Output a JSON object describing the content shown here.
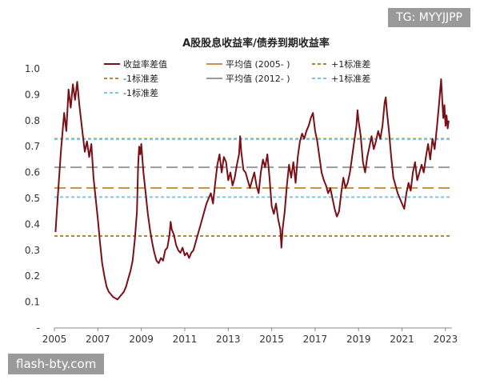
{
  "watermark_top": "TG: MYYJJPP",
  "watermark_bottom": "flash-bty.com",
  "chart_data": {
    "type": "line",
    "title": "A股股息收益率/债券到期收益率",
    "xlabel": "",
    "ylabel": "",
    "xlim": [
      2005,
      2023.3
    ],
    "ylim": [
      0,
      1.0
    ],
    "x_ticks": [
      "2005",
      "2007",
      "2009",
      "2011",
      "2013",
      "2015",
      "2017",
      "2019",
      "2021",
      "2023"
    ],
    "y_ticks": [
      "-",
      "0.1",
      "0.2",
      "0.3",
      "0.4",
      "0.5",
      "0.6",
      "0.7",
      "0.8",
      "0.9",
      "1.0"
    ],
    "legend": [
      {
        "name": "收益率差值",
        "style": "solid",
        "color": "#7b0f17"
      },
      {
        "name": "平均值 (2005- )",
        "style": "solid",
        "color": "#c8944a"
      },
      {
        "name": "+1标准差",
        "style": "dashed",
        "color": "#b8862c"
      },
      {
        "name": "-1标准差",
        "style": "dashed",
        "color": "#b8862c"
      },
      {
        "name": "平均值 (2012- )",
        "style": "solid",
        "color": "#9a9a9a"
      },
      {
        "name": "+1标准差",
        "style": "dashed",
        "color": "#7fc3ea"
      },
      {
        "name": "-1标准差",
        "style": "dashed",
        "color": "#7fc3ea"
      }
    ],
    "reference_lines": [
      {
        "name": "平均值 (2005- )",
        "y": 0.54,
        "color": "#c8944a",
        "dash": "long"
      },
      {
        "name": "+1标准差 (2005- )",
        "y": 0.73,
        "color": "#b8862c",
        "dash": "short"
      },
      {
        "name": "-1标准差 (2005- )",
        "y": 0.355,
        "color": "#b8862c",
        "dash": "short"
      },
      {
        "name": "平均值 (2012- )",
        "y": 0.62,
        "color": "#9a9a9a",
        "dash": "long"
      },
      {
        "name": "+1标准差 (2012- )",
        "y": 0.728,
        "color": "#7fc3ea",
        "dash": "short"
      },
      {
        "name": "-1标准差 (2012- )",
        "y": 0.505,
        "color": "#7fc3ea",
        "dash": "short"
      }
    ],
    "series": [
      {
        "name": "收益率差值",
        "color": "#7b0f17",
        "points": [
          [
            2005.05,
            0.37
          ],
          [
            2005.15,
            0.5
          ],
          [
            2005.3,
            0.68
          ],
          [
            2005.45,
            0.83
          ],
          [
            2005.55,
            0.76
          ],
          [
            2005.65,
            0.92
          ],
          [
            2005.75,
            0.85
          ],
          [
            2005.85,
            0.94
          ],
          [
            2005.95,
            0.88
          ],
          [
            2006.05,
            0.95
          ],
          [
            2006.15,
            0.86
          ],
          [
            2006.3,
            0.75
          ],
          [
            2006.4,
            0.68
          ],
          [
            2006.5,
            0.72
          ],
          [
            2006.6,
            0.66
          ],
          [
            2006.7,
            0.71
          ],
          [
            2006.8,
            0.58
          ],
          [
            2006.9,
            0.5
          ],
          [
            2007.0,
            0.42
          ],
          [
            2007.1,
            0.33
          ],
          [
            2007.2,
            0.25
          ],
          [
            2007.3,
            0.2
          ],
          [
            2007.4,
            0.16
          ],
          [
            2007.5,
            0.14
          ],
          [
            2007.6,
            0.13
          ],
          [
            2007.7,
            0.12
          ],
          [
            2007.8,
            0.115
          ],
          [
            2007.9,
            0.11
          ],
          [
            2008.0,
            0.12
          ],
          [
            2008.1,
            0.13
          ],
          [
            2008.2,
            0.14
          ],
          [
            2008.3,
            0.16
          ],
          [
            2008.4,
            0.19
          ],
          [
            2008.5,
            0.22
          ],
          [
            2008.6,
            0.26
          ],
          [
            2008.7,
            0.34
          ],
          [
            2008.8,
            0.45
          ],
          [
            2008.85,
            0.62
          ],
          [
            2008.9,
            0.7
          ],
          [
            2008.95,
            0.67
          ],
          [
            2009.0,
            0.71
          ],
          [
            2009.1,
            0.6
          ],
          [
            2009.2,
            0.52
          ],
          [
            2009.3,
            0.44
          ],
          [
            2009.4,
            0.38
          ],
          [
            2009.5,
            0.33
          ],
          [
            2009.6,
            0.29
          ],
          [
            2009.7,
            0.26
          ],
          [
            2009.8,
            0.25
          ],
          [
            2009.9,
            0.27
          ],
          [
            2010.0,
            0.26
          ],
          [
            2010.1,
            0.3
          ],
          [
            2010.2,
            0.31
          ],
          [
            2010.3,
            0.36
          ],
          [
            2010.35,
            0.41
          ],
          [
            2010.4,
            0.38
          ],
          [
            2010.5,
            0.36
          ],
          [
            2010.6,
            0.32
          ],
          [
            2010.7,
            0.3
          ],
          [
            2010.8,
            0.29
          ],
          [
            2010.9,
            0.31
          ],
          [
            2011.0,
            0.28
          ],
          [
            2011.1,
            0.29
          ],
          [
            2011.2,
            0.27
          ],
          [
            2011.3,
            0.29
          ],
          [
            2011.4,
            0.3
          ],
          [
            2011.5,
            0.33
          ],
          [
            2011.6,
            0.36
          ],
          [
            2011.7,
            0.39
          ],
          [
            2011.8,
            0.42
          ],
          [
            2011.9,
            0.45
          ],
          [
            2012.0,
            0.48
          ],
          [
            2012.1,
            0.5
          ],
          [
            2012.2,
            0.52
          ],
          [
            2012.3,
            0.48
          ],
          [
            2012.4,
            0.56
          ],
          [
            2012.5,
            0.63
          ],
          [
            2012.6,
            0.67
          ],
          [
            2012.7,
            0.6
          ],
          [
            2012.8,
            0.66
          ],
          [
            2012.9,
            0.64
          ],
          [
            2013.0,
            0.57
          ],
          [
            2013.1,
            0.6
          ],
          [
            2013.2,
            0.55
          ],
          [
            2013.3,
            0.58
          ],
          [
            2013.4,
            0.63
          ],
          [
            2013.5,
            0.67
          ],
          [
            2013.55,
            0.74
          ],
          [
            2013.6,
            0.68
          ],
          [
            2013.7,
            0.61
          ],
          [
            2013.8,
            0.6
          ],
          [
            2013.9,
            0.57
          ],
          [
            2014.0,
            0.54
          ],
          [
            2014.1,
            0.57
          ],
          [
            2014.2,
            0.6
          ],
          [
            2014.3,
            0.55
          ],
          [
            2014.4,
            0.52
          ],
          [
            2014.5,
            0.6
          ],
          [
            2014.6,
            0.65
          ],
          [
            2014.7,
            0.62
          ],
          [
            2014.8,
            0.67
          ],
          [
            2014.9,
            0.58
          ],
          [
            2015.0,
            0.47
          ],
          [
            2015.1,
            0.44
          ],
          [
            2015.2,
            0.48
          ],
          [
            2015.3,
            0.42
          ],
          [
            2015.4,
            0.38
          ],
          [
            2015.45,
            0.31
          ],
          [
            2015.5,
            0.38
          ],
          [
            2015.6,
            0.45
          ],
          [
            2015.7,
            0.55
          ],
          [
            2015.8,
            0.63
          ],
          [
            2015.9,
            0.58
          ],
          [
            2016.0,
            0.64
          ],
          [
            2016.1,
            0.56
          ],
          [
            2016.2,
            0.66
          ],
          [
            2016.3,
            0.72
          ],
          [
            2016.4,
            0.75
          ],
          [
            2016.5,
            0.73
          ],
          [
            2016.6,
            0.76
          ],
          [
            2016.7,
            0.78
          ],
          [
            2016.8,
            0.81
          ],
          [
            2016.9,
            0.83
          ],
          [
            2017.0,
            0.76
          ],
          [
            2017.1,
            0.72
          ],
          [
            2017.2,
            0.66
          ],
          [
            2017.3,
            0.6
          ],
          [
            2017.4,
            0.57
          ],
          [
            2017.5,
            0.55
          ],
          [
            2017.6,
            0.52
          ],
          [
            2017.7,
            0.54
          ],
          [
            2017.8,
            0.5
          ],
          [
            2017.9,
            0.46
          ],
          [
            2018.0,
            0.43
          ],
          [
            2018.1,
            0.45
          ],
          [
            2018.2,
            0.52
          ],
          [
            2018.3,
            0.58
          ],
          [
            2018.4,
            0.54
          ],
          [
            2018.5,
            0.56
          ],
          [
            2018.6,
            0.6
          ],
          [
            2018.7,
            0.66
          ],
          [
            2018.8,
            0.72
          ],
          [
            2018.9,
            0.78
          ],
          [
            2018.95,
            0.84
          ],
          [
            2019.0,
            0.8
          ],
          [
            2019.1,
            0.74
          ],
          [
            2019.2,
            0.64
          ],
          [
            2019.3,
            0.6
          ],
          [
            2019.4,
            0.66
          ],
          [
            2019.5,
            0.7
          ],
          [
            2019.6,
            0.74
          ],
          [
            2019.7,
            0.69
          ],
          [
            2019.8,
            0.72
          ],
          [
            2019.9,
            0.76
          ],
          [
            2020.0,
            0.73
          ],
          [
            2020.1,
            0.78
          ],
          [
            2020.2,
            0.87
          ],
          [
            2020.25,
            0.89
          ],
          [
            2020.3,
            0.84
          ],
          [
            2020.4,
            0.76
          ],
          [
            2020.5,
            0.66
          ],
          [
            2020.6,
            0.58
          ],
          [
            2020.7,
            0.55
          ],
          [
            2020.8,
            0.52
          ],
          [
            2020.9,
            0.5
          ],
          [
            2021.0,
            0.48
          ],
          [
            2021.1,
            0.46
          ],
          [
            2021.2,
            0.52
          ],
          [
            2021.3,
            0.56
          ],
          [
            2021.4,
            0.53
          ],
          [
            2021.5,
            0.6
          ],
          [
            2021.6,
            0.64
          ],
          [
            2021.7,
            0.57
          ],
          [
            2021.8,
            0.6
          ],
          [
            2021.9,
            0.63
          ],
          [
            2022.0,
            0.6
          ],
          [
            2022.1,
            0.66
          ],
          [
            2022.2,
            0.71
          ],
          [
            2022.3,
            0.65
          ],
          [
            2022.4,
            0.73
          ],
          [
            2022.5,
            0.69
          ],
          [
            2022.6,
            0.77
          ],
          [
            2022.7,
            0.86
          ],
          [
            2022.8,
            0.96
          ],
          [
            2022.85,
            0.88
          ],
          [
            2022.9,
            0.81
          ],
          [
            2022.95,
            0.86
          ],
          [
            2023.0,
            0.78
          ],
          [
            2023.05,
            0.82
          ],
          [
            2023.1,
            0.77
          ],
          [
            2023.15,
            0.8
          ]
        ]
      }
    ]
  }
}
